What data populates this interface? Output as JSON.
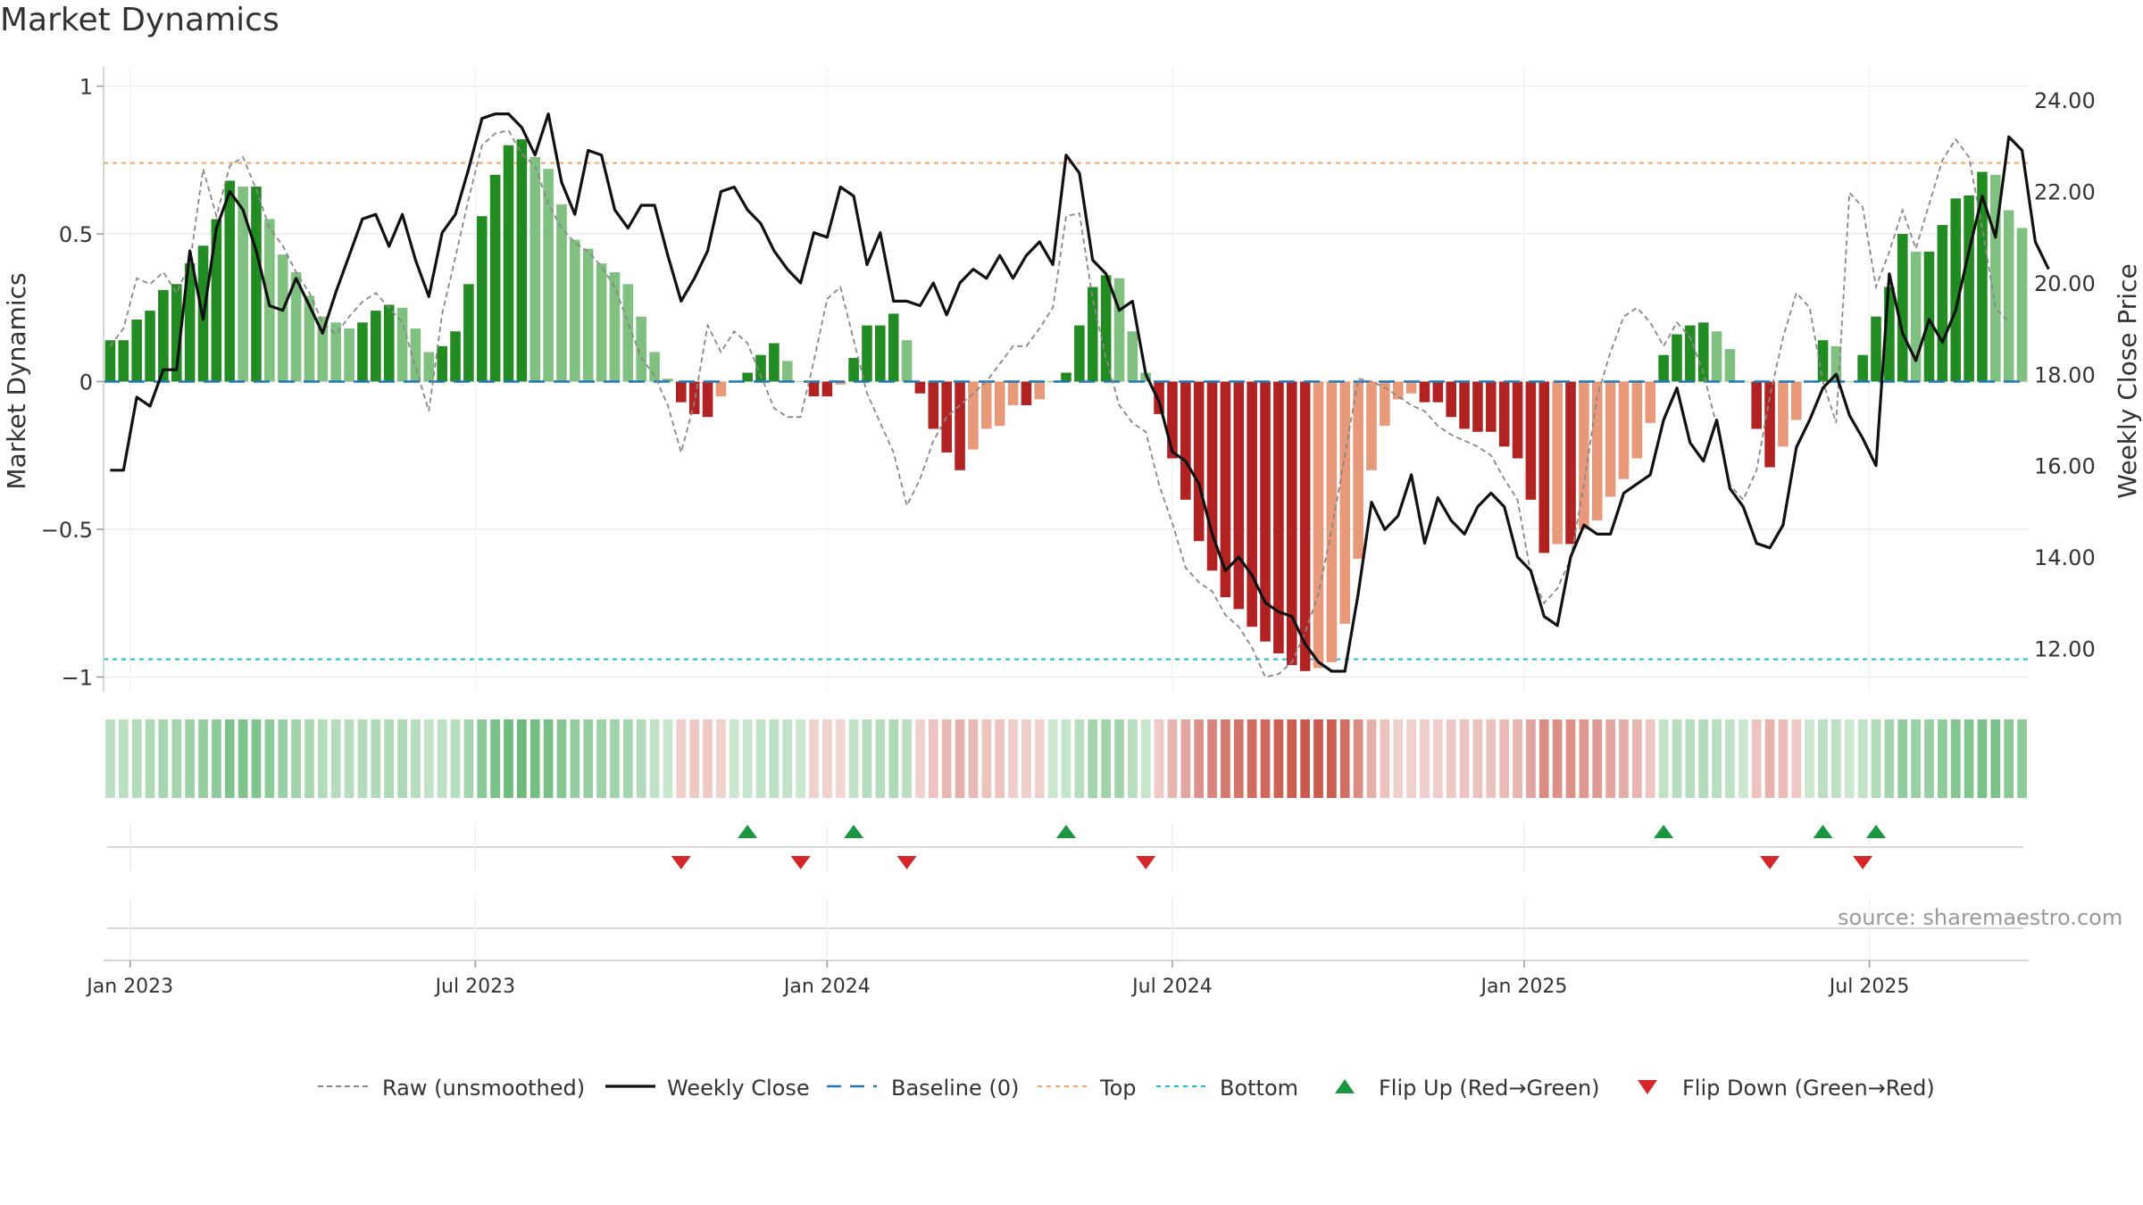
{
  "chart_data": {
    "type": "bar",
    "title": "Market Dynamics",
    "watermark": "source: sharemaestro.com",
    "ylabel_left": "Market Dynamics",
    "ylabel_right": "Weekly Close Price",
    "ylim_left": [
      -1.05,
      1.05
    ],
    "ylim_right": [
      11.05,
      24.63
    ],
    "left_ticks": [
      {
        "v": 1,
        "label": "1"
      },
      {
        "v": 0.5,
        "label": "0.5"
      },
      {
        "v": 0,
        "label": "0"
      },
      {
        "v": -0.5,
        "label": "−0.5"
      },
      {
        "v": -1,
        "label": "−1"
      }
    ],
    "right_ticks": [
      {
        "v": 24,
        "label": "24.00"
      },
      {
        "v": 22,
        "label": "22.00"
      },
      {
        "v": 20,
        "label": "20.00"
      },
      {
        "v": 18,
        "label": "18.00"
      },
      {
        "v": 16,
        "label": "16.00"
      },
      {
        "v": 14,
        "label": "14.00"
      },
      {
        "v": 12,
        "label": "12.00"
      }
    ],
    "x_ticks": [
      {
        "i": 1.5,
        "label": "Jan 2023"
      },
      {
        "i": 27.5,
        "label": "Jul 2023"
      },
      {
        "i": 54,
        "label": "Jan 2024"
      },
      {
        "i": 80,
        "label": "Jul 2024"
      },
      {
        "i": 106.5,
        "label": "Jan 2025"
      },
      {
        "i": 132.5,
        "label": "Jul 2025"
      }
    ],
    "grid": true,
    "top_threshold": 0.74,
    "bottom_threshold": -0.94,
    "baseline": 0,
    "colors": {
      "pos_strong": "#228b22",
      "pos_weak": "#80c080",
      "neg_strong": "#b22222",
      "neg_weak": "#e8997a",
      "close_line": "#111111",
      "raw_line": "#888888",
      "baseline": "#1f77b4",
      "top": "#f4a460",
      "bottom": "#17becf",
      "flip_up": "#1a9641",
      "flip_down": "#d62728"
    },
    "dynamics": [
      0.14,
      0.14,
      0.21,
      0.24,
      0.31,
      0.33,
      0.4,
      0.46,
      0.55,
      0.68,
      0.66,
      0.66,
      0.55,
      0.43,
      0.37,
      0.29,
      0.22,
      0.2,
      0.18,
      0.2,
      0.24,
      0.26,
      0.25,
      0.18,
      0.1,
      0.12,
      0.17,
      0.33,
      0.56,
      0.7,
      0.8,
      0.82,
      0.76,
      0.72,
      0.6,
      0.48,
      0.45,
      0.4,
      0.37,
      0.33,
      0.22,
      0.1,
      0.01,
      -0.07,
      -0.11,
      -0.12,
      -0.05,
      0.0,
      0.03,
      0.09,
      0.13,
      0.07,
      0.0,
      -0.05,
      -0.05,
      -0.01,
      0.08,
      0.19,
      0.19,
      0.23,
      0.14,
      -0.04,
      -0.16,
      -0.24,
      -0.3,
      -0.23,
      -0.16,
      -0.15,
      -0.08,
      -0.08,
      -0.06,
      0.0,
      0.03,
      0.19,
      0.32,
      0.36,
      0.35,
      0.17,
      0.03,
      -0.11,
      -0.26,
      -0.4,
      -0.54,
      -0.64,
      -0.73,
      -0.77,
      -0.83,
      -0.88,
      -0.92,
      -0.96,
      -0.98,
      -0.97,
      -0.95,
      -0.82,
      -0.6,
      -0.3,
      -0.15,
      -0.06,
      -0.04,
      -0.07,
      -0.07,
      -0.12,
      -0.16,
      -0.17,
      -0.17,
      -0.22,
      -0.26,
      -0.4,
      -0.58,
      -0.55,
      -0.55,
      -0.5,
      -0.47,
      -0.39,
      -0.33,
      -0.26,
      -0.14,
      0.09,
      0.16,
      0.19,
      0.2,
      0.17,
      0.11,
      0.0,
      -0.16,
      -0.29,
      -0.22,
      -0.13,
      0.0,
      0.14,
      0.12,
      0.0,
      0.09,
      0.22,
      0.32,
      0.5,
      0.44,
      0.44,
      0.53,
      0.62,
      0.63,
      0.71,
      0.7,
      0.58,
      0.52
    ],
    "raw": [
      0.12,
      0.18,
      0.35,
      0.33,
      0.37,
      0.3,
      0.4,
      0.72,
      0.56,
      0.73,
      0.76,
      0.65,
      0.52,
      0.46,
      0.37,
      0.3,
      0.2,
      0.16,
      0.22,
      0.27,
      0.3,
      0.25,
      0.2,
      0.05,
      -0.1,
      0.23,
      0.42,
      0.62,
      0.8,
      0.84,
      0.85,
      0.77,
      0.73,
      0.6,
      0.52,
      0.47,
      0.44,
      0.39,
      0.32,
      0.2,
      0.08,
      0.02,
      -0.08,
      -0.24,
      -0.07,
      0.19,
      0.1,
      0.17,
      0.13,
      0.02,
      -0.09,
      -0.12,
      -0.12,
      0.07,
      0.28,
      0.32,
      0.14,
      -0.04,
      -0.14,
      -0.24,
      -0.42,
      -0.33,
      -0.2,
      -0.12,
      -0.08,
      -0.04,
      0.0,
      0.06,
      0.12,
      0.12,
      0.18,
      0.25,
      0.56,
      0.57,
      0.28,
      0.08,
      -0.08,
      -0.14,
      -0.17,
      -0.35,
      -0.48,
      -0.63,
      -0.68,
      -0.71,
      -0.79,
      -0.83,
      -0.9,
      -1.0,
      -0.99,
      -0.95,
      -0.85,
      -0.72,
      -0.5,
      -0.25,
      0.01,
      0.0,
      -0.02,
      -0.05,
      -0.08,
      -0.1,
      -0.15,
      -0.18,
      -0.2,
      -0.22,
      -0.25,
      -0.33,
      -0.4,
      -0.65,
      -0.75,
      -0.7,
      -0.6,
      -0.35,
      -0.05,
      0.1,
      0.22,
      0.25,
      0.2,
      0.12,
      0.2,
      0.15,
      0.03,
      -0.15,
      -0.35,
      -0.4,
      -0.3,
      -0.05,
      0.15,
      0.3,
      0.25,
      0.0,
      -0.14,
      0.64,
      0.59,
      0.32,
      0.44,
      0.58,
      0.45,
      0.6,
      0.75,
      0.82,
      0.76,
      0.52,
      0.25,
      0.2
    ],
    "close": [
      15.9,
      15.9,
      17.5,
      17.3,
      18.1,
      18.1,
      20.7,
      19.2,
      21.2,
      22.0,
      21.6,
      20.7,
      19.5,
      19.4,
      20.1,
      19.5,
      18.9,
      19.8,
      20.6,
      21.4,
      21.5,
      20.8,
      21.5,
      20.5,
      19.7,
      21.1,
      21.5,
      22.5,
      23.6,
      23.7,
      23.7,
      23.4,
      22.8,
      23.7,
      22.2,
      21.5,
      22.9,
      22.8,
      21.6,
      21.2,
      21.7,
      21.7,
      20.6,
      19.6,
      20.1,
      20.7,
      22.0,
      22.1,
      21.6,
      21.3,
      20.7,
      20.3,
      20.0,
      21.1,
      21.0,
      22.1,
      21.9,
      20.4,
      21.1,
      19.6,
      19.6,
      19.5,
      20.0,
      19.3,
      20.0,
      20.3,
      20.1,
      20.6,
      20.1,
      20.6,
      20.9,
      20.4,
      22.8,
      22.4,
      20.5,
      20.2,
      19.4,
      19.6,
      18.0,
      17.4,
      16.3,
      16.1,
      15.6,
      14.5,
      13.7,
      14.0,
      13.6,
      13.0,
      12.8,
      12.7,
      12.1,
      11.7,
      11.5,
      11.5,
      13.2,
      15.2,
      14.6,
      14.9,
      15.8,
      14.3,
      15.3,
      14.8,
      14.5,
      15.1,
      15.4,
      15.1,
      14.0,
      13.7,
      12.7,
      12.5,
      14.0,
      14.7,
      14.5,
      14.5,
      15.4,
      15.6,
      15.8,
      17.0,
      17.7,
      16.5,
      16.1,
      17.0,
      15.5,
      15.1,
      14.3,
      14.2,
      14.7,
      16.4,
      17.0,
      17.7,
      18.0,
      17.1,
      16.6,
      16.0,
      20.2,
      18.9,
      18.3,
      19.2,
      18.7,
      19.4,
      20.7,
      21.9,
      21.0,
      23.2,
      22.9,
      20.9,
      20.3
    ],
    "flips_up": [
      48,
      56,
      72,
      117,
      129,
      133
    ],
    "flips_down": [
      43,
      52,
      60,
      78,
      125,
      132
    ],
    "legend": [
      {
        "key": "raw",
        "label": "Raw (unsmoothed)"
      },
      {
        "key": "close",
        "label": "Weekly Close"
      },
      {
        "key": "baseline",
        "label": "Baseline (0)"
      },
      {
        "key": "top",
        "label": "Top"
      },
      {
        "key": "bottom",
        "label": "Bottom"
      },
      {
        "key": "flip_up",
        "label": "Flip Up (Red→Green)"
      },
      {
        "key": "flip_down",
        "label": "Flip Down (Green→Red)"
      }
    ]
  }
}
